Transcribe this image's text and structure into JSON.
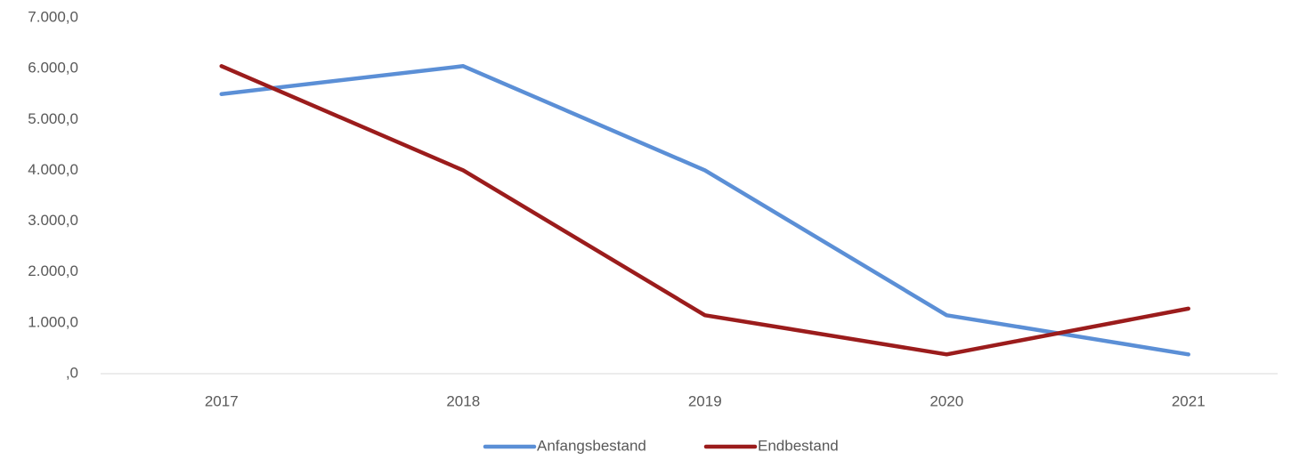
{
  "chart_data": {
    "type": "line",
    "categories": [
      "2017",
      "2018",
      "2019",
      "2020",
      "2021"
    ],
    "series": [
      {
        "name": "Anfangsbestand",
        "color": "#5b8fd6",
        "values": [
          5500,
          6050,
          4000,
          1150,
          380
        ]
      },
      {
        "name": "Endbestand",
        "color": "#9b1c1c",
        "values": [
          6050,
          4000,
          1150,
          380,
          1280
        ]
      }
    ],
    "ylim": [
      0,
      7000
    ],
    "yticks": [
      {
        "value": 0,
        "label": ",0"
      },
      {
        "value": 1000,
        "label": "1.000,0"
      },
      {
        "value": 2000,
        "label": "2.000,0"
      },
      {
        "value": 3000,
        "label": "3.000,0"
      },
      {
        "value": 4000,
        "label": "4.000,0"
      },
      {
        "value": 5000,
        "label": "5.000,0"
      },
      {
        "value": 6000,
        "label": "6.000,0"
      },
      {
        "value": 7000,
        "label": "7.000,0"
      }
    ],
    "grid": false,
    "legend": "bottom"
  }
}
